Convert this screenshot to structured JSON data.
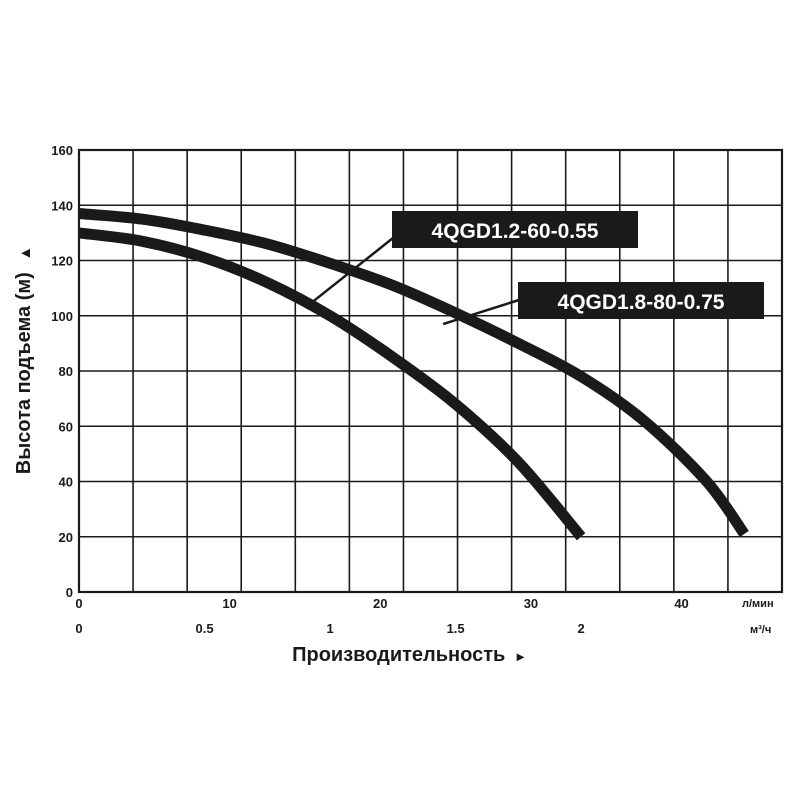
{
  "chart_data": {
    "type": "line",
    "title": "",
    "ylabel": "Высота подъема (м)",
    "ylabel_arrow": "▲",
    "xlabel": "Производительность",
    "xlabel_arrow": "▸",
    "ylim": [
      0,
      160
    ],
    "yticks": [
      "0",
      "20",
      "40",
      "60",
      "80",
      "100",
      "120",
      "140",
      "160"
    ],
    "xlim_lmin": [
      0,
      46.7
    ],
    "xlim_m3h": [
      0,
      2.8
    ],
    "x_ticks_lmin": [
      "0",
      "10",
      "20",
      "30",
      "40"
    ],
    "x_unit_lmin": "л/мин",
    "x_ticks_m3h": [
      "0",
      "0.5",
      "1",
      "1.5",
      "2"
    ],
    "x_unit_m3h": "м³/ч",
    "grid": true,
    "legend": "inline-labels",
    "series": [
      {
        "name": "4QGD1.2-60-0.55",
        "x_m3h": [
          0,
          0.25,
          0.5,
          0.75,
          1.0,
          1.25,
          1.5,
          1.75,
          2.0
        ],
        "y": [
          130,
          127,
          121,
          112,
          100,
          85,
          68,
          47,
          20
        ]
      },
      {
        "name": "4QGD1.8-80-0.75",
        "x_m3h": [
          0,
          0.25,
          0.5,
          0.75,
          1.0,
          1.25,
          1.5,
          1.75,
          2.0,
          2.25,
          2.5,
          2.65
        ],
        "y": [
          137,
          135,
          131,
          126,
          119,
          111,
          101,
          90,
          78,
          62,
          40,
          21
        ]
      }
    ]
  }
}
